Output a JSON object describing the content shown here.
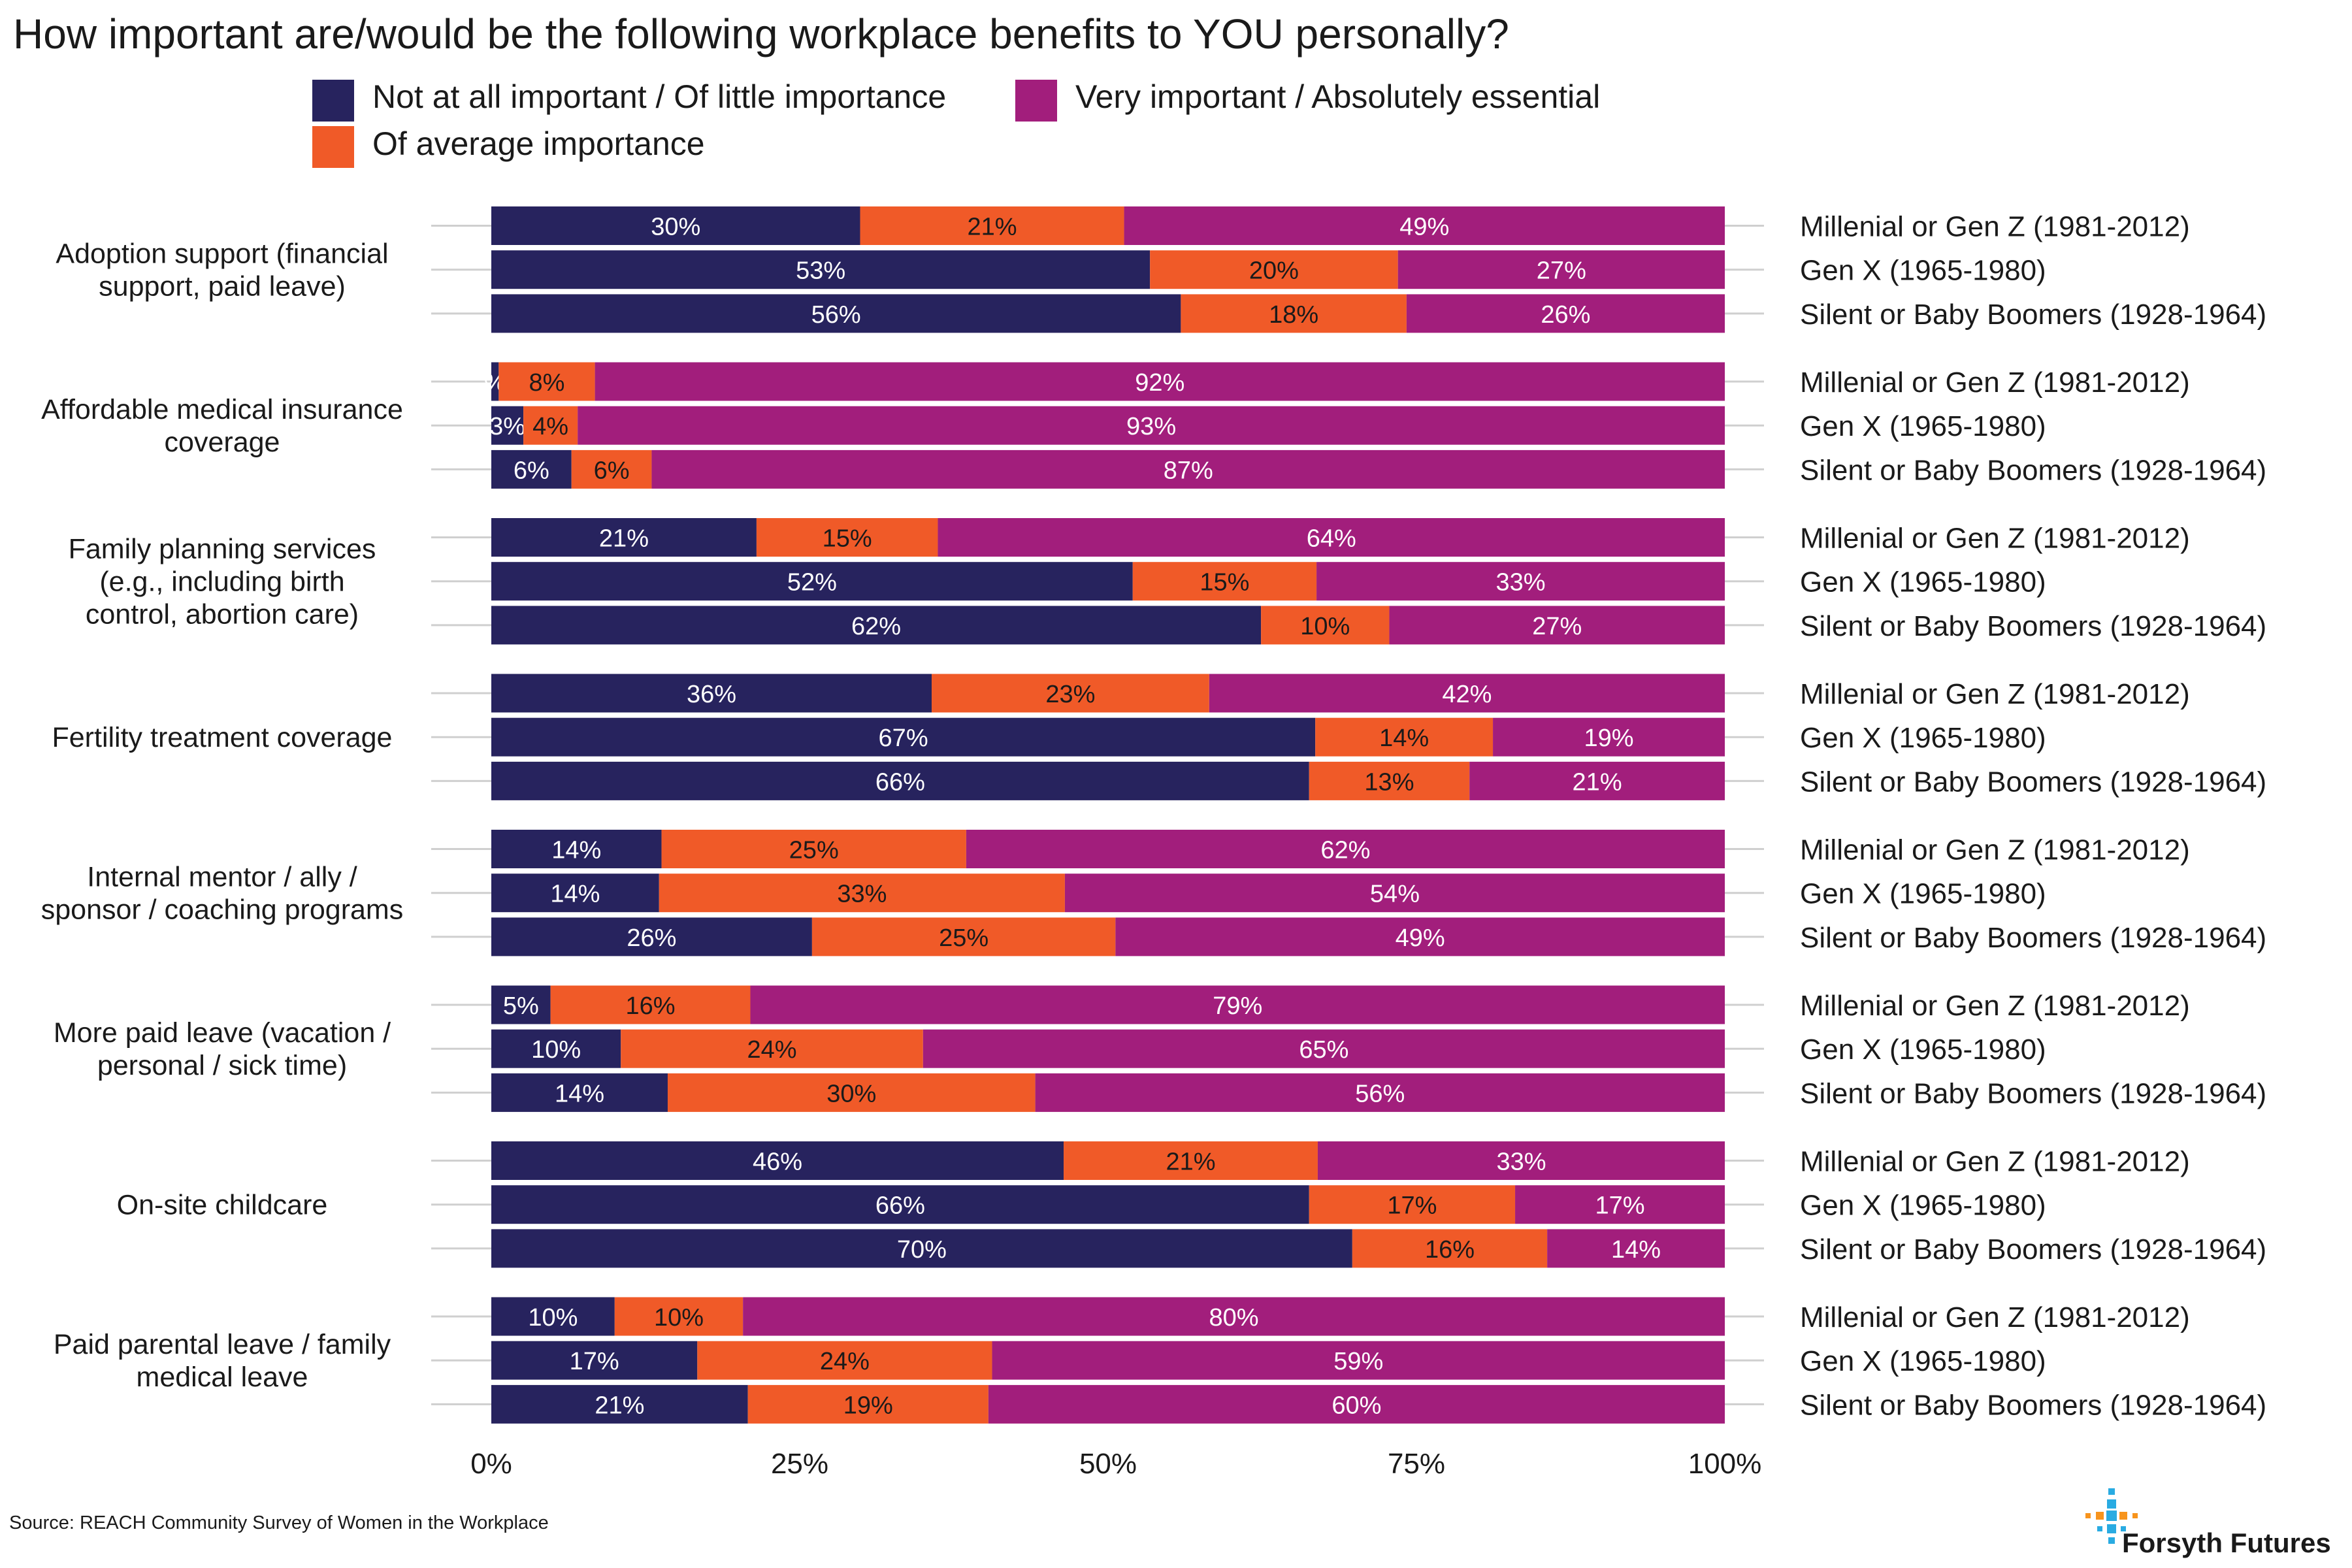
{
  "chart_data": {
    "type": "bar",
    "orientation": "horizontal",
    "stacked": true,
    "title": "How important are/would be the following workplace benefits to YOU personally?",
    "source": "Source: REACH Community Survey of Women in the Workplace",
    "brand": "Forsyth Futures",
    "legend_position": "top",
    "legend": [
      {
        "name": "Not at all important / Of little importance",
        "color": "#27235E"
      },
      {
        "name": "Very important / Absolutely essential",
        "color": "#A21E7C"
      },
      {
        "name": "Of average importance",
        "color": "#F05A28"
      }
    ],
    "segment_colors": [
      "#27235E",
      "#F05A28",
      "#A21E7C"
    ],
    "segment_label_colors": [
      "#ffffff",
      "#1a1a1a",
      "#ffffff"
    ],
    "generations": [
      "Millenial or Gen Z (1981-2012)",
      "Gen X (1965-1980)",
      "Silent or Baby Boomers (1928-1964)"
    ],
    "x_ticks": [
      "0%",
      "25%",
      "50%",
      "75%",
      "100%"
    ],
    "xlim": [
      0,
      100
    ],
    "grid": false,
    "groups": [
      {
        "category": "Adoption support (financial support, paid leave)",
        "label_lines": [
          "Adoption support (financial",
          "support, paid leave)"
        ],
        "rows": [
          {
            "values": [
              29.9,
              21.4,
              48.7
            ],
            "labels": [
              "30%",
              "21%",
              "49%"
            ]
          },
          {
            "values": [
              53.4,
              20.1,
              26.5
            ],
            "labels": [
              "53%",
              "20%",
              "27%"
            ]
          },
          {
            "values": [
              55.9,
              18.3,
              25.8
            ],
            "labels": [
              "56%",
              "18%",
              "26%"
            ]
          }
        ]
      },
      {
        "category": "Affordable medical insurance coverage",
        "label_lines": [
          "Affordable medical insurance",
          "coverage"
        ],
        "rows": [
          {
            "values": [
              0.6,
              7.8,
              91.6
            ],
            "labels": [
              "%",
              "8%",
              "92%"
            ]
          },
          {
            "values": [
              2.6,
              4.4,
              93.0
            ],
            "labels": [
              "3%",
              "4%",
              "93%"
            ]
          },
          {
            "values": [
              6.5,
              6.5,
              87.0
            ],
            "labels": [
              "6%",
              "6%",
              "87%"
            ]
          }
        ]
      },
      {
        "category": "Family planning services (e.g., including birth control, abortion care)",
        "label_lines": [
          "Family planning services",
          "(e.g., including birth",
          "control, abortion care)"
        ],
        "rows": [
          {
            "values": [
              21.5,
              14.7,
              63.8
            ],
            "labels": [
              "21%",
              "15%",
              "64%"
            ]
          },
          {
            "values": [
              52.0,
              14.9,
              33.1
            ],
            "labels": [
              "52%",
              "15%",
              "33%"
            ]
          },
          {
            "values": [
              62.4,
              10.4,
              27.2
            ],
            "labels": [
              "62%",
              "10%",
              "27%"
            ]
          }
        ]
      },
      {
        "category": "Fertility treatment coverage",
        "label_lines": [
          "Fertility treatment coverage"
        ],
        "rows": [
          {
            "values": [
              35.7,
              22.5,
              41.8
            ],
            "labels": [
              "36%",
              "23%",
              "42%"
            ]
          },
          {
            "values": [
              66.8,
              14.4,
              18.8
            ],
            "labels": [
              "67%",
              "14%",
              "19%"
            ]
          },
          {
            "values": [
              66.3,
              13.0,
              20.7
            ],
            "labels": [
              "66%",
              "13%",
              "21%"
            ]
          }
        ]
      },
      {
        "category": "Internal mentor / ally / sponsor / coaching programs",
        "label_lines": [
          "Internal mentor / ally /",
          "sponsor / coaching programs"
        ],
        "rows": [
          {
            "values": [
              13.8,
              24.7,
              61.5
            ],
            "labels": [
              "14%",
              "25%",
              "62%"
            ]
          },
          {
            "values": [
              13.6,
              32.9,
              53.5
            ],
            "labels": [
              "14%",
              "33%",
              "54%"
            ]
          },
          {
            "values": [
              26.0,
              24.6,
              49.4
            ],
            "labels": [
              "26%",
              "25%",
              "49%"
            ]
          }
        ]
      },
      {
        "category": "More paid leave (vacation / personal / sick time)",
        "label_lines": [
          "More paid leave (vacation /",
          "personal / sick time)"
        ],
        "rows": [
          {
            "values": [
              4.8,
              16.2,
              79.0
            ],
            "labels": [
              "5%",
              "16%",
              "79%"
            ]
          },
          {
            "values": [
              10.5,
              24.5,
              65.0
            ],
            "labels": [
              "10%",
              "24%",
              "65%"
            ]
          },
          {
            "values": [
              14.3,
              29.8,
              55.9
            ],
            "labels": [
              "14%",
              "30%",
              "56%"
            ]
          }
        ]
      },
      {
        "category": "On-site childcare",
        "label_lines": [
          "On-site childcare"
        ],
        "rows": [
          {
            "values": [
              46.4,
              20.6,
              33.0
            ],
            "labels": [
              "46%",
              "21%",
              "33%"
            ]
          },
          {
            "values": [
              66.3,
              16.7,
              17.0
            ],
            "labels": [
              "66%",
              "17%",
              "17%"
            ]
          },
          {
            "values": [
              69.8,
              15.8,
              14.4
            ],
            "labels": [
              "70%",
              "16%",
              "14%"
            ]
          }
        ]
      },
      {
        "category": "Paid parental leave / family medical leave",
        "label_lines": [
          "Paid parental leave / family",
          "medical leave"
        ],
        "rows": [
          {
            "values": [
              10.0,
              10.4,
              79.6
            ],
            "labels": [
              "10%",
              "10%",
              "80%"
            ]
          },
          {
            "values": [
              16.7,
              23.9,
              59.4
            ],
            "labels": [
              "17%",
              "24%",
              "59%"
            ]
          },
          {
            "values": [
              20.8,
              19.5,
              59.7
            ],
            "labels": [
              "21%",
              "19%",
              "60%"
            ]
          }
        ]
      }
    ]
  }
}
